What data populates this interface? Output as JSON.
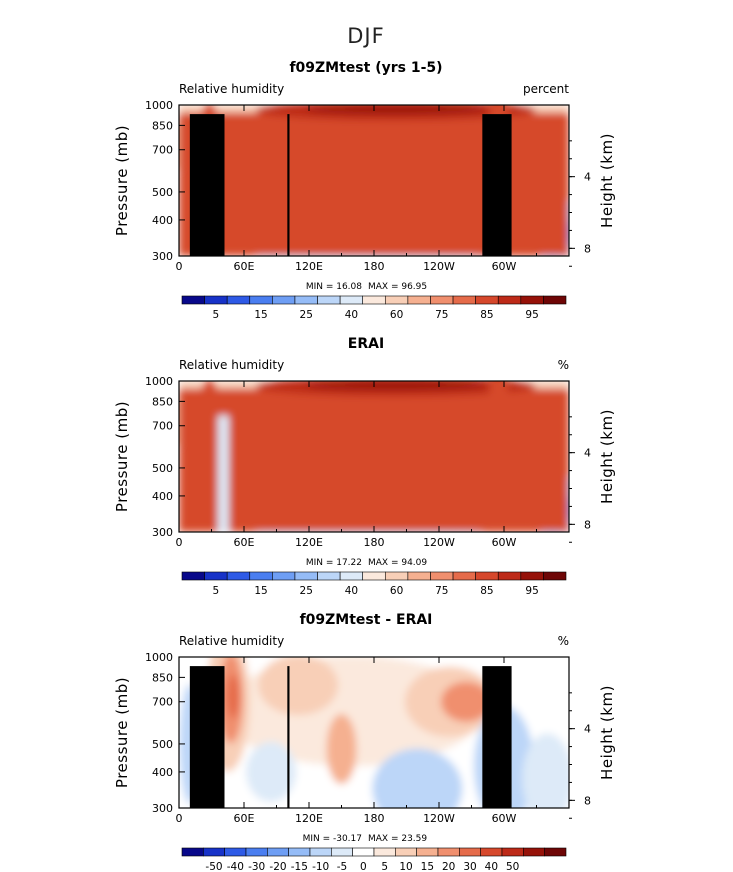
{
  "figure": {
    "title": "DJF"
  },
  "colors": {
    "full_levels": [
      "#08088a",
      "#1732c8",
      "#2e5ae6",
      "#4a7ef0",
      "#6e9ef4",
      "#95bcf7",
      "#bcd6f8",
      "#ddeaf8",
      "#fbe9dd",
      "#f8cfb7",
      "#f5b090",
      "#f08f6e",
      "#e56b4a",
      "#d6482c",
      "#bd2a18",
      "#961209",
      "#6e0606"
    ],
    "diff_levels": [
      "#08088a",
      "#1732c8",
      "#2e5ae6",
      "#4a7ef0",
      "#6e9ef4",
      "#95bcf7",
      "#bcd6f8",
      "#ddeaf8",
      "#ffffff",
      "#fbe9dd",
      "#f8cfb7",
      "#f5b090",
      "#f08f6e",
      "#e56b4a",
      "#d6482c",
      "#bd2a18",
      "#961209",
      "#6e0606"
    ],
    "topography": "#000000"
  },
  "chart_data": [
    {
      "type": "heatmap",
      "title": "f09ZMtest (yrs 1-5)",
      "left_label": "Relative humidity",
      "right_label": "percent",
      "xlabel": "",
      "ylabel": "Pressure (mb)",
      "y2label": "Height (km)",
      "x_ticks": [
        "0",
        "60E",
        "120E",
        "180",
        "120W",
        "60W"
      ],
      "y_ticks": [
        "300",
        "400",
        "500",
        "700",
        "850",
        "1000"
      ],
      "y2_ticks": [
        "8",
        "4"
      ],
      "xlim": [
        0,
        360
      ],
      "ylim": [
        1000,
        300
      ],
      "min_text": "MIN =   16.08",
      "max_text": "MAX =   96.95",
      "colorbar_labels": [
        "5",
        "15",
        "25",
        "40",
        "60",
        "75",
        "85",
        "95"
      ],
      "topography": true
    },
    {
      "type": "heatmap",
      "title": "ERAI",
      "left_label": "Relative humidity",
      "right_label": "%",
      "xlabel": "",
      "ylabel": "Pressure (mb)",
      "y2label": "Height (km)",
      "x_ticks": [
        "0",
        "60E",
        "120E",
        "180",
        "120W",
        "60W"
      ],
      "y_ticks": [
        "300",
        "400",
        "500",
        "700",
        "850",
        "1000"
      ],
      "y2_ticks": [
        "8",
        "4"
      ],
      "xlim": [
        0,
        360
      ],
      "ylim": [
        1000,
        300
      ],
      "min_text": "MIN =   17.22",
      "max_text": "MAX =   94.09",
      "colorbar_labels": [
        "5",
        "15",
        "25",
        "40",
        "60",
        "75",
        "85",
        "95"
      ],
      "topography": false
    },
    {
      "type": "heatmap",
      "title": "f09ZMtest - ERAI",
      "left_label": "Relative humidity",
      "right_label": "%",
      "xlabel": "",
      "ylabel": "Pressure (mb)",
      "y2label": "Height (km)",
      "x_ticks": [
        "0",
        "60E",
        "120E",
        "180",
        "120W",
        "60W"
      ],
      "y_ticks": [
        "300",
        "400",
        "500",
        "700",
        "850",
        "1000"
      ],
      "y2_ticks": [
        "8",
        "4"
      ],
      "xlim": [
        0,
        360
      ],
      "ylim": [
        1000,
        300
      ],
      "min_text": "MIN = -30.17",
      "max_text": "MAX =   23.59",
      "colorbar_labels": [
        "-50",
        "-40",
        "-30",
        "-20",
        "-15",
        "-10",
        "-5",
        "0",
        "5",
        "10",
        "15",
        "20",
        "30",
        "40",
        "50"
      ],
      "topography": true
    }
  ]
}
